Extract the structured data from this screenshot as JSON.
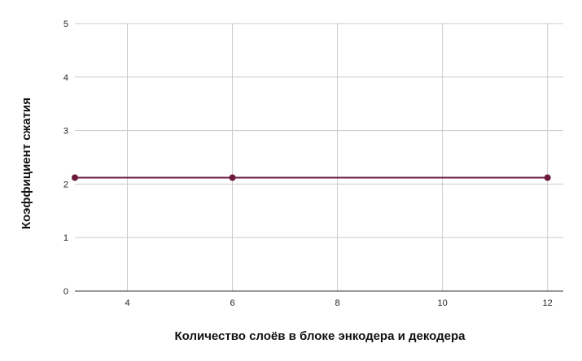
{
  "chart_data": {
    "type": "line",
    "title": "",
    "xlabel": "Количество слоёв в блоке энкодера и декодера",
    "ylabel": "Коэффициент сжатия",
    "x": [
      3,
      6,
      12
    ],
    "series": [
      {
        "values": [
          2.12,
          2.12,
          2.12
        ],
        "color": "#6b1a3d"
      }
    ],
    "xlim": [
      3,
      12
    ],
    "ylim": [
      0,
      5
    ],
    "xticks": [
      4,
      6,
      8,
      10,
      12
    ],
    "yticks": [
      0,
      1,
      2,
      3,
      4,
      5
    ],
    "xtick_labels": [
      "4",
      "6",
      "8",
      "10",
      "12"
    ],
    "ytick_labels": [
      "0",
      "1",
      "2",
      "3",
      "4",
      "5"
    ],
    "grid": true,
    "legend": "none",
    "colors": {
      "grid": "#cccccc",
      "axis": "#333333",
      "line": "#6b1a3d"
    }
  }
}
